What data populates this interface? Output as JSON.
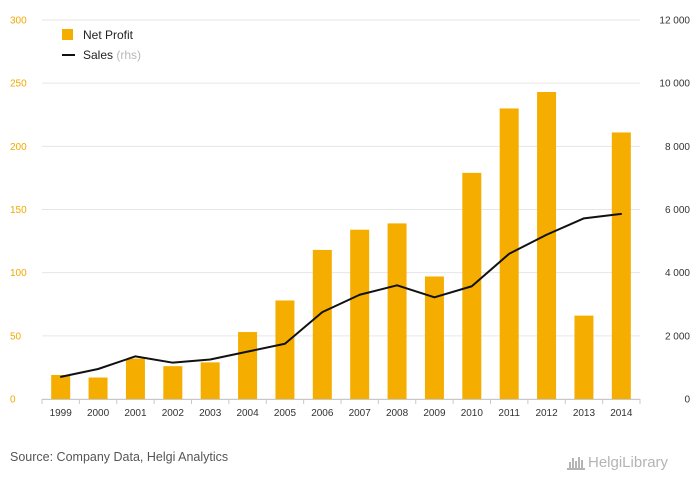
{
  "chart_data": {
    "type": "bar",
    "categories": [
      "1999",
      "2000",
      "2001",
      "2002",
      "2003",
      "2004",
      "2005",
      "2006",
      "2007",
      "2008",
      "2009",
      "2010",
      "2011",
      "2012",
      "2013",
      "2014"
    ],
    "series": [
      {
        "name": "Net Profit",
        "type": "bar",
        "axis": "left",
        "color": "#f5ae00",
        "values": [
          19,
          17,
          32,
          26,
          29,
          53,
          78,
          118,
          134,
          139,
          97,
          179,
          230,
          243,
          66,
          211
        ]
      },
      {
        "name": "Sales",
        "name_suffix": "(rhs)",
        "type": "line",
        "axis": "right",
        "color": "#111111",
        "values": [
          700,
          950,
          1350,
          1150,
          1250,
          1500,
          1750,
          2750,
          3300,
          3600,
          3220,
          3570,
          4600,
          5200,
          5720,
          5860
        ]
      }
    ],
    "ylim_left": [
      0,
      300
    ],
    "ylim_right": [
      0,
      12000
    ],
    "yticks_left": [
      "0",
      "50",
      "100",
      "150",
      "200",
      "250",
      "300"
    ],
    "yticks_right": [
      "0",
      "2 000",
      "4 000",
      "6 000",
      "8 000",
      "10 000",
      "12 000"
    ],
    "grid": true,
    "legend_position": "top-left"
  },
  "footer": {
    "source": "Source: Company Data, Helgi Analytics",
    "brand": "HelgiLibrary"
  }
}
